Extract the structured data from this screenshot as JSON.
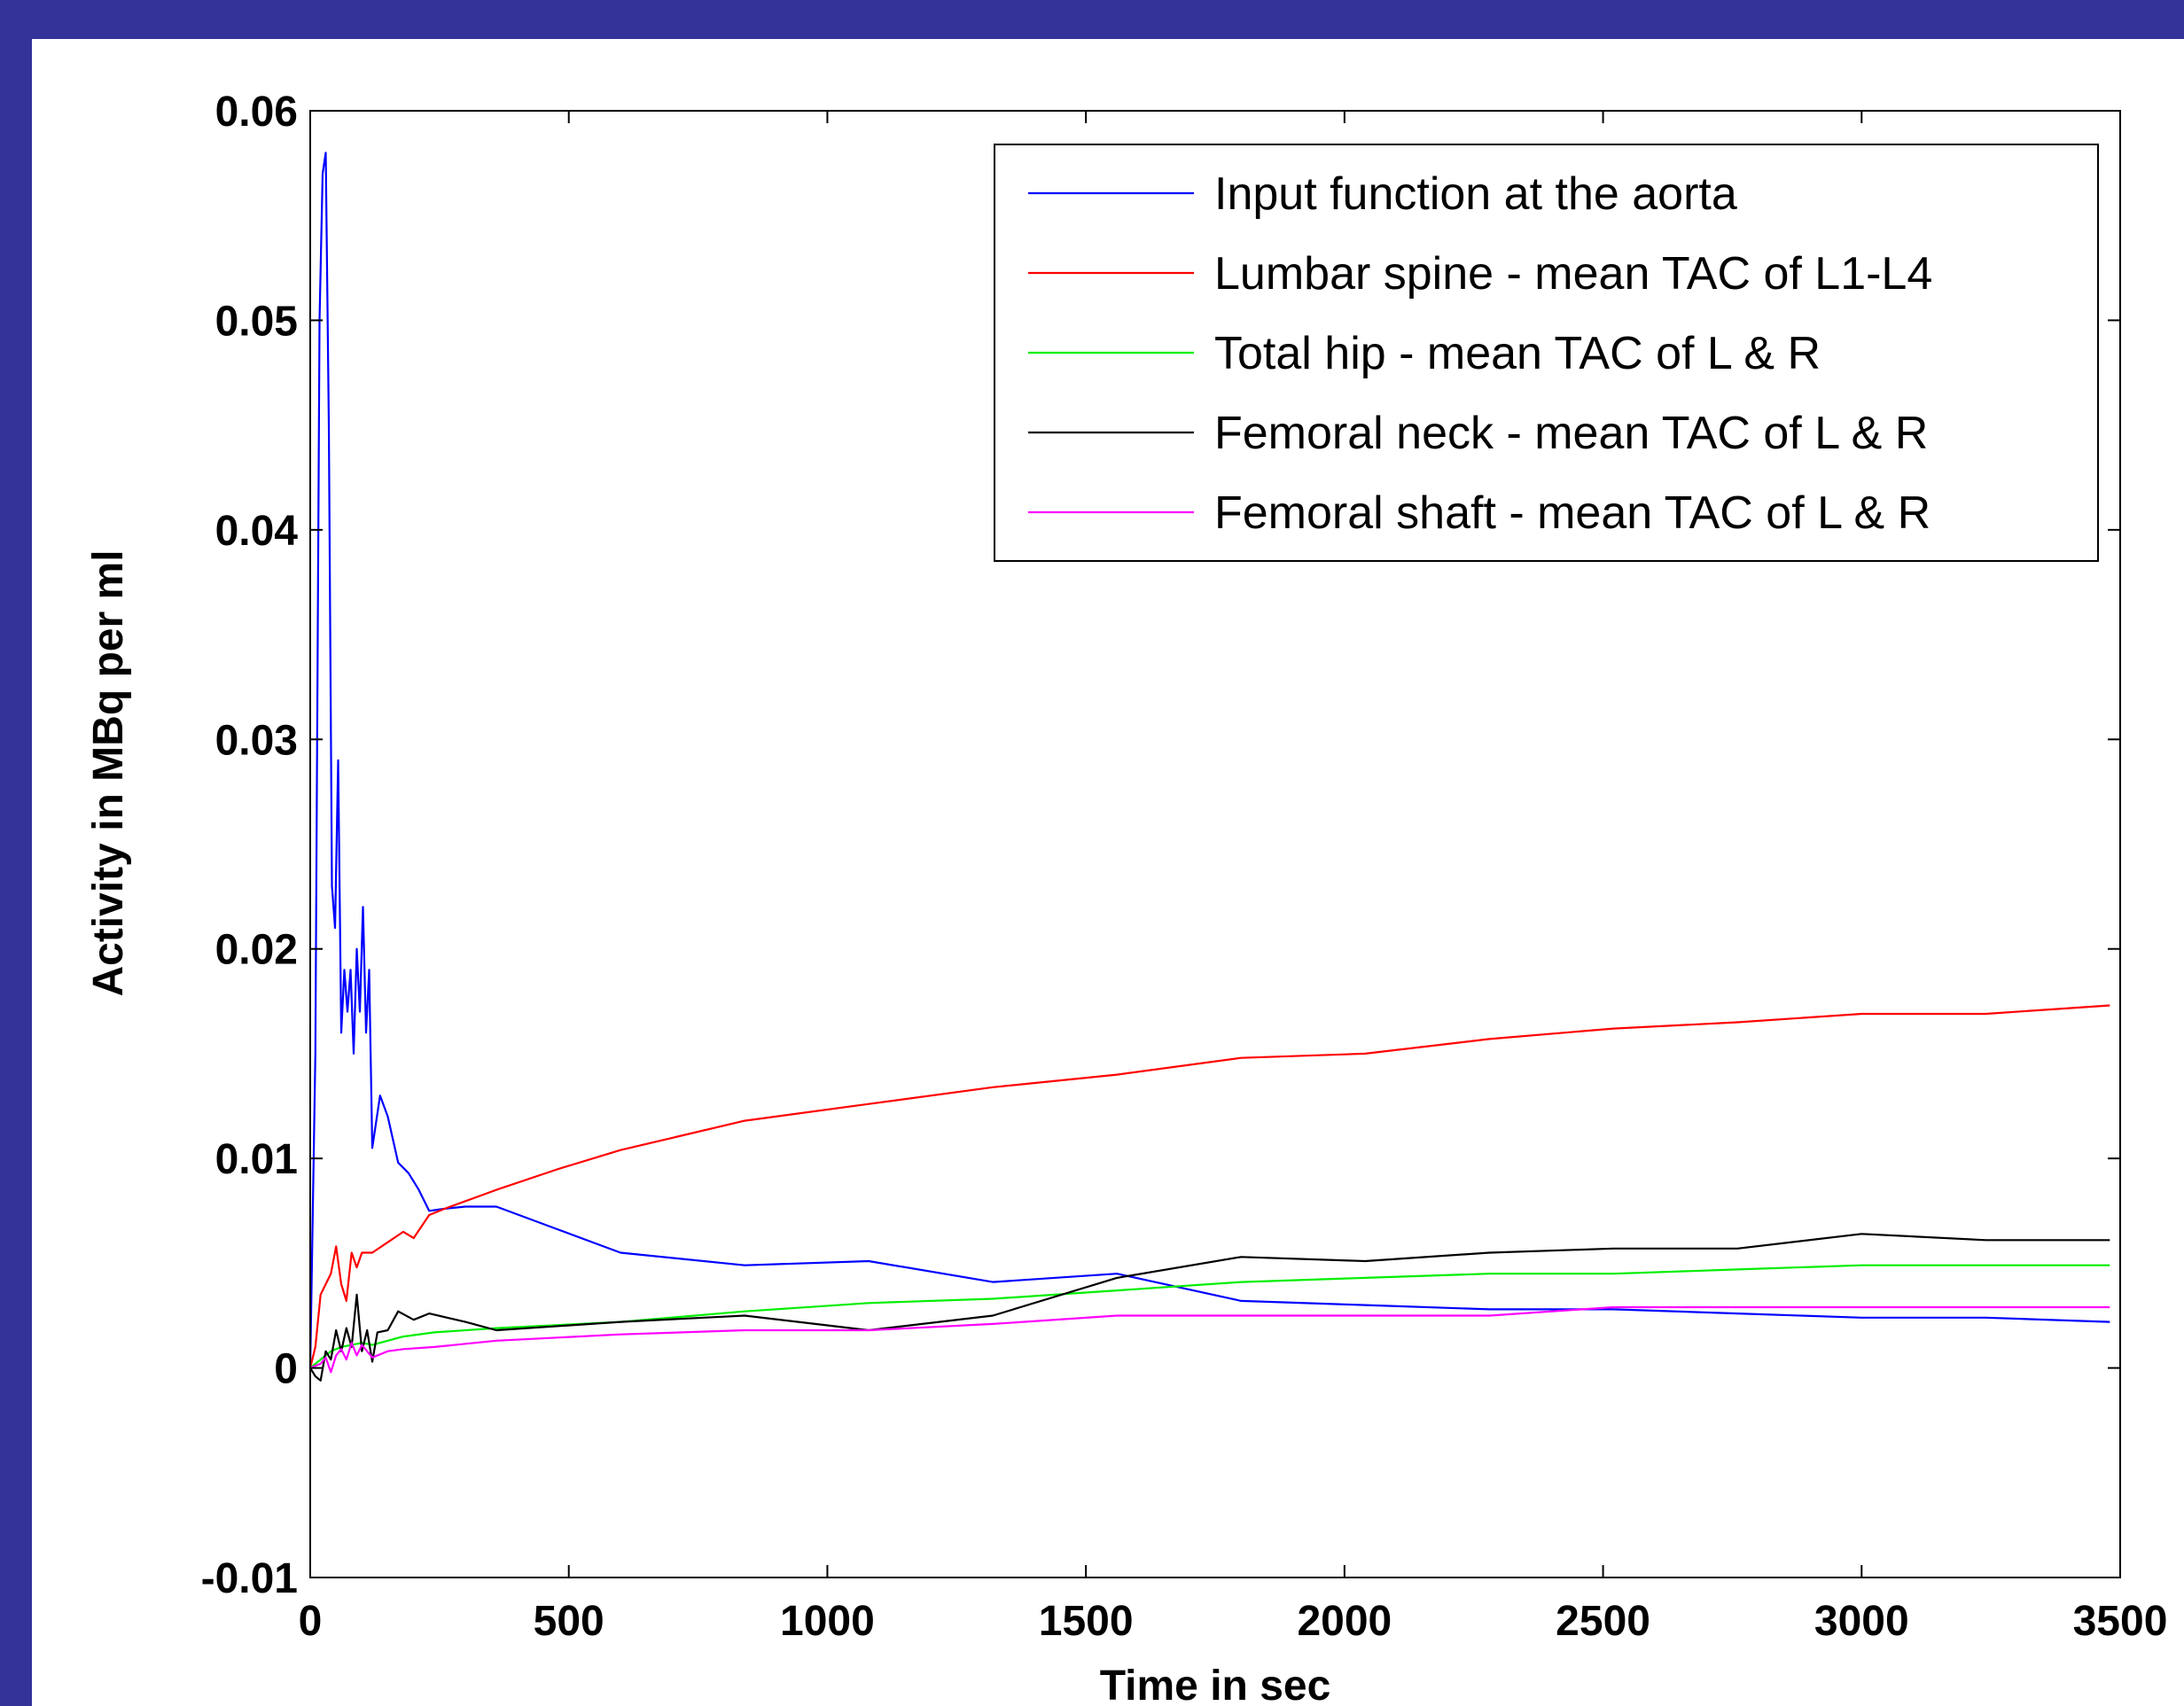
{
  "background_color": "#333399",
  "chart_data": {
    "type": "line",
    "title": "",
    "xlabel": "Time in sec",
    "ylabel": "Activity  in MBq per ml",
    "xlim": [
      0,
      3500
    ],
    "ylim": [
      -0.01,
      0.06
    ],
    "xticks": [
      0,
      500,
      1000,
      1500,
      2000,
      2500,
      3000,
      3500
    ],
    "xtick_labels": [
      "0",
      "500",
      "1000",
      "1500",
      "2000",
      "2500",
      "3000",
      "3500"
    ],
    "yticks": [
      -0.01,
      0,
      0.01,
      0.02,
      0.03,
      0.04,
      0.05,
      0.06
    ],
    "ytick_labels": [
      "-0.01",
      "0",
      "0.01",
      "0.02",
      "0.03",
      "0.04",
      "0.05",
      "0.06"
    ],
    "grid": false,
    "legend_position": "top-right",
    "series": [
      {
        "name": "Input function at the aorta",
        "color": "#0000ff",
        "x": [
          0,
          10,
          18,
          24,
          30,
          36,
          42,
          48,
          54,
          60,
          66,
          72,
          78,
          84,
          90,
          96,
          102,
          108,
          114,
          120,
          135,
          150,
          170,
          190,
          210,
          230,
          260,
          300,
          360,
          480,
          600,
          840,
          1080,
          1320,
          1560,
          1800,
          2040,
          2280,
          2520,
          2760,
          3000,
          3240,
          3480
        ],
        "y": [
          0,
          0.015,
          0.05,
          0.057,
          0.058,
          0.045,
          0.023,
          0.021,
          0.029,
          0.016,
          0.019,
          0.017,
          0.019,
          0.015,
          0.02,
          0.017,
          0.022,
          0.016,
          0.019,
          0.0105,
          0.013,
          0.012,
          0.0098,
          0.0093,
          0.0085,
          0.0075,
          0.0076,
          0.0077,
          0.0077,
          0.0066,
          0.0055,
          0.0049,
          0.0051,
          0.0041,
          0.0045,
          0.0032,
          0.003,
          0.0028,
          0.0028,
          0.0026,
          0.0024,
          0.0024,
          0.0022
        ]
      },
      {
        "name": "Lumbar spine - mean TAC of L1-L4",
        "color": "#ff0000",
        "x": [
          0,
          10,
          20,
          30,
          40,
          50,
          60,
          70,
          80,
          90,
          100,
          120,
          150,
          180,
          200,
          230,
          260,
          360,
          480,
          600,
          840,
          1080,
          1320,
          1560,
          1800,
          2040,
          2280,
          2520,
          2760,
          3000,
          3240,
          3480
        ],
        "y": [
          0,
          0.001,
          0.0035,
          0.004,
          0.0045,
          0.0058,
          0.004,
          0.0032,
          0.0055,
          0.0048,
          0.0055,
          0.0055,
          0.006,
          0.0065,
          0.0062,
          0.0073,
          0.0076,
          0.0085,
          0.0095,
          0.0104,
          0.0118,
          0.0126,
          0.0134,
          0.014,
          0.0148,
          0.015,
          0.0157,
          0.0162,
          0.0165,
          0.0169,
          0.0169,
          0.0173
        ]
      },
      {
        "name": "Total hip - mean TAC of L & R",
        "color": "#00ee00",
        "x": [
          0,
          20,
          40,
          60,
          80,
          100,
          120,
          150,
          180,
          240,
          360,
          600,
          840,
          1080,
          1320,
          1560,
          1800,
          2040,
          2280,
          2520,
          2760,
          3000,
          3240,
          3480
        ],
        "y": [
          0,
          0.0004,
          0.0008,
          0.001,
          0.0011,
          0.0012,
          0.0011,
          0.0013,
          0.0015,
          0.0017,
          0.0019,
          0.0022,
          0.0027,
          0.0031,
          0.0033,
          0.0037,
          0.0041,
          0.0043,
          0.0045,
          0.0045,
          0.0047,
          0.0049,
          0.0049,
          0.0049
        ]
      },
      {
        "name": "Femoral neck - mean TAC of L & R",
        "color": "#000000",
        "x": [
          0,
          10,
          20,
          30,
          40,
          50,
          60,
          70,
          80,
          90,
          100,
          110,
          120,
          130,
          150,
          170,
          200,
          230,
          300,
          360,
          480,
          600,
          840,
          1080,
          1320,
          1560,
          1800,
          2040,
          2280,
          2520,
          2760,
          3000,
          3240,
          3480
        ],
        "y": [
          0,
          -0.0004,
          -0.0006,
          0.0008,
          0.0004,
          0.0018,
          0.0008,
          0.0019,
          0.001,
          0.0035,
          0.0008,
          0.0018,
          0.0003,
          0.0017,
          0.0018,
          0.0027,
          0.0023,
          0.0026,
          0.0022,
          0.0018,
          0.002,
          0.0022,
          0.0025,
          0.0018,
          0.0025,
          0.0043,
          0.0053,
          0.0051,
          0.0055,
          0.0057,
          0.0057,
          0.0064,
          0.0061,
          0.0061
        ]
      },
      {
        "name": "Femoral shaft - mean TAC of L & R",
        "color": "#ff00ff",
        "x": [
          0,
          20,
          30,
          40,
          50,
          60,
          70,
          80,
          90,
          100,
          110,
          120,
          150,
          180,
          240,
          360,
          600,
          840,
          1080,
          1320,
          1560,
          1800,
          2040,
          2280,
          2520,
          2760,
          3000,
          3240,
          3480
        ],
        "y": [
          0,
          0.0002,
          0.0005,
          -0.0002,
          0.0006,
          0.0009,
          0.0004,
          0.0012,
          0.0006,
          0.0011,
          0.0008,
          0.0005,
          0.0008,
          0.0009,
          0.001,
          0.0013,
          0.0016,
          0.0018,
          0.0018,
          0.0021,
          0.0025,
          0.0025,
          0.0025,
          0.0025,
          0.0029,
          0.0029,
          0.0029,
          0.0029,
          0.0029
        ]
      }
    ]
  }
}
